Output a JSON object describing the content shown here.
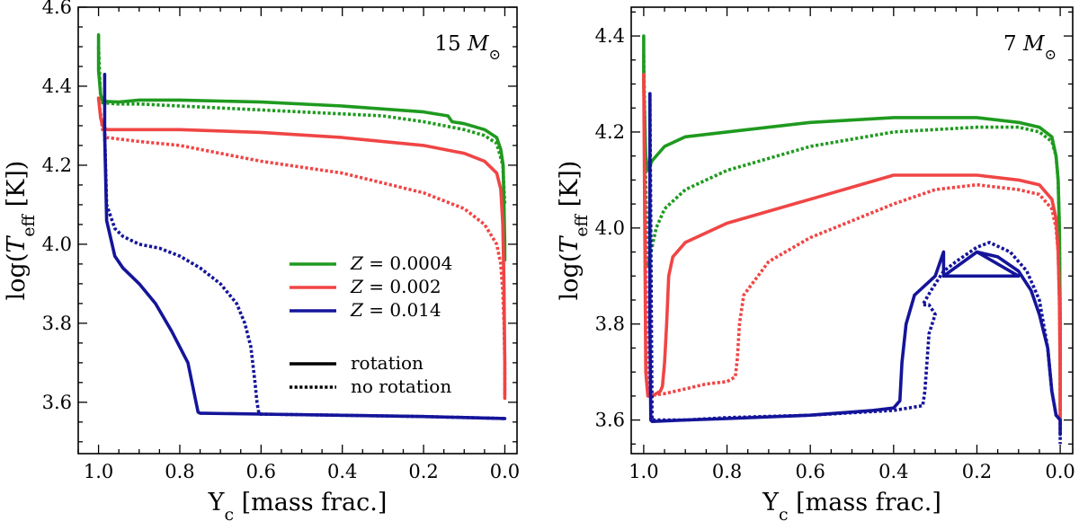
{
  "chart_data": [
    {
      "type": "line",
      "panel": "left",
      "annotation": "15 M⊙",
      "xlabel": "Y_c [mass frac.]",
      "ylabel": "log(T_eff [K])",
      "xlim": [
        1.05,
        -0.03
      ],
      "ylim": [
        3.47,
        4.6
      ],
      "xticks": [
        1.0,
        0.8,
        0.6,
        0.4,
        0.2,
        0.0
      ],
      "xtick_labels": [
        "1.0",
        "0.8",
        "0.6",
        "0.4",
        "0.2",
        "0.0"
      ],
      "yticks": [
        3.6,
        3.8,
        4.0,
        4.2,
        4.4,
        4.6
      ],
      "ytick_labels": [
        "3.6",
        "3.8",
        "4.0",
        "4.2",
        "4.4",
        "4.6"
      ],
      "legend": {
        "placement": "center-right",
        "entries": [
          {
            "label": "Z = 0.0004",
            "color": "#1f9a1f",
            "style": "solid"
          },
          {
            "label": "Z = 0.002",
            "color": "#f04545",
            "style": "solid"
          },
          {
            "label": "Z = 0.014",
            "color": "#14149a",
            "style": "solid"
          },
          {
            "label": "rotation",
            "color": "#000000",
            "style": "solid"
          },
          {
            "label": "no rotation",
            "color": "#000000",
            "style": "dotted"
          }
        ]
      },
      "series": [
        {
          "name": "Z=0.0004 rotation",
          "color": "#1f9a1f",
          "style": "solid",
          "x": [
            1.0,
            1.0,
            0.995,
            0.99,
            0.95,
            0.9,
            0.8,
            0.6,
            0.4,
            0.2,
            0.14,
            0.13,
            0.1,
            0.05,
            0.02,
            0.01,
            0.004,
            0.002,
            0.0,
            0.0
          ],
          "y": [
            4.53,
            4.44,
            4.38,
            4.362,
            4.36,
            4.365,
            4.365,
            4.36,
            4.35,
            4.335,
            4.325,
            4.31,
            4.305,
            4.29,
            4.27,
            4.24,
            4.2,
            4.1,
            4.0,
            3.96
          ]
        },
        {
          "name": "Z=0.0004 no rotation",
          "color": "#1f9a1f",
          "style": "dotted",
          "x": [
            1.0,
            0.995,
            0.99,
            0.95,
            0.9,
            0.8,
            0.6,
            0.4,
            0.3,
            0.2,
            0.1,
            0.05,
            0.02,
            0.005,
            0.0
          ],
          "y": [
            4.5,
            4.37,
            4.358,
            4.355,
            4.355,
            4.35,
            4.34,
            4.33,
            4.325,
            4.31,
            4.29,
            4.275,
            4.255,
            4.2,
            4.1
          ]
        },
        {
          "name": "Z=0.002 rotation",
          "color": "#f04545",
          "style": "solid",
          "x": [
            1.0,
            0.995,
            0.99,
            0.98,
            0.9,
            0.8,
            0.6,
            0.4,
            0.2,
            0.1,
            0.05,
            0.02,
            0.01,
            0.005,
            0.002,
            0.0,
            0.0
          ],
          "y": [
            4.37,
            4.32,
            4.3,
            4.29,
            4.29,
            4.29,
            4.283,
            4.27,
            4.25,
            4.23,
            4.21,
            4.18,
            4.14,
            4.05,
            3.9,
            3.7,
            3.61
          ]
        },
        {
          "name": "Z=0.002 no rotation",
          "color": "#f04545",
          "style": "dotted",
          "x": [
            1.0,
            0.99,
            0.98,
            0.9,
            0.8,
            0.7,
            0.6,
            0.4,
            0.2,
            0.1,
            0.05,
            0.02,
            0.01,
            0.005,
            0.002,
            0.0,
            0.0
          ],
          "y": [
            4.37,
            4.29,
            4.27,
            4.26,
            4.25,
            4.23,
            4.21,
            4.18,
            4.13,
            4.09,
            4.05,
            4.0,
            3.95,
            3.88,
            3.8,
            3.7,
            3.62
          ]
        },
        {
          "name": "Z=0.014 rotation",
          "color": "#14149a",
          "style": "solid",
          "x": [
            0.985,
            0.985,
            0.98,
            0.96,
            0.94,
            0.9,
            0.86,
            0.82,
            0.78,
            0.76,
            0.755,
            0.75,
            0.74,
            0.6,
            0.4,
            0.2,
            0.0
          ],
          "y": [
            4.43,
            4.28,
            4.06,
            3.97,
            3.94,
            3.9,
            3.85,
            3.78,
            3.7,
            3.6,
            3.575,
            3.572,
            3.572,
            3.57,
            3.567,
            3.564,
            3.559
          ]
        },
        {
          "name": "Z=0.014 no rotation",
          "color": "#14149a",
          "style": "dotted",
          "x": [
            0.985,
            0.98,
            0.96,
            0.94,
            0.9,
            0.85,
            0.8,
            0.75,
            0.7,
            0.66,
            0.64,
            0.625,
            0.615,
            0.61,
            0.605,
            0.4,
            0.2,
            0.0
          ],
          "y": [
            4.28,
            4.1,
            4.04,
            4.02,
            4.0,
            3.99,
            3.97,
            3.94,
            3.9,
            3.85,
            3.8,
            3.74,
            3.65,
            3.6,
            3.57,
            3.567,
            3.564,
            3.559
          ]
        }
      ]
    },
    {
      "type": "line",
      "panel": "right",
      "annotation": "7 M⊙",
      "xlabel": "Y_c [mass frac.]",
      "ylabel": "log(T_eff [K])",
      "xlim": [
        1.03,
        -0.03
      ],
      "ylim": [
        3.53,
        4.46
      ],
      "xticks": [
        1.0,
        0.8,
        0.6,
        0.4,
        0.2,
        0.0
      ],
      "xtick_labels": [
        "1.0",
        "0.8",
        "0.6",
        "0.4",
        "0.2",
        "0.0"
      ],
      "yticks": [
        3.6,
        3.8,
        4.0,
        4.2,
        4.4
      ],
      "ytick_labels": [
        "3.6",
        "3.8",
        "4.0",
        "4.2",
        "4.4"
      ],
      "series": [
        {
          "name": "Z=0.0004 rotation",
          "color": "#1f9a1f",
          "style": "solid",
          "x": [
            1.0,
            1.0,
            0.995,
            0.99,
            0.98,
            0.95,
            0.9,
            0.8,
            0.6,
            0.4,
            0.2,
            0.1,
            0.05,
            0.02,
            0.01,
            0.005,
            0.002,
            0.0,
            0.0
          ],
          "y": [
            4.4,
            4.3,
            4.15,
            4.12,
            4.14,
            4.17,
            4.19,
            4.2,
            4.22,
            4.23,
            4.23,
            4.22,
            4.21,
            4.19,
            4.15,
            4.1,
            4.0,
            3.8,
            3.62
          ]
        },
        {
          "name": "Z=0.0004 no rotation",
          "color": "#1f9a1f",
          "style": "dotted",
          "x": [
            1.0,
            0.995,
            0.99,
            0.97,
            0.95,
            0.9,
            0.8,
            0.6,
            0.4,
            0.2,
            0.1,
            0.05,
            0.02,
            0.01,
            0.005,
            0.002,
            0.0,
            0.0
          ],
          "y": [
            4.36,
            4.1,
            3.92,
            4.0,
            4.04,
            4.08,
            4.12,
            4.17,
            4.2,
            4.21,
            4.21,
            4.2,
            4.18,
            4.15,
            4.1,
            4.0,
            3.8,
            3.65
          ]
        },
        {
          "name": "Z=0.002 rotation",
          "color": "#f04545",
          "style": "solid",
          "x": [
            1.0,
            0.995,
            0.99,
            0.98,
            0.97,
            0.96,
            0.955,
            0.95,
            0.945,
            0.94,
            0.93,
            0.9,
            0.8,
            0.6,
            0.4,
            0.2,
            0.1,
            0.05,
            0.02,
            0.01,
            0.005,
            0.002,
            0.0,
            0.0
          ],
          "y": [
            4.32,
            3.7,
            3.65,
            3.65,
            3.655,
            3.66,
            3.67,
            3.72,
            3.8,
            3.9,
            3.94,
            3.97,
            4.01,
            4.06,
            4.11,
            4.11,
            4.1,
            4.09,
            4.06,
            4.02,
            3.95,
            3.85,
            3.7,
            3.58
          ]
        },
        {
          "name": "Z=0.002 no rotation",
          "color": "#f04545",
          "style": "dotted",
          "x": [
            1.0,
            0.99,
            0.95,
            0.9,
            0.85,
            0.8,
            0.78,
            0.775,
            0.77,
            0.76,
            0.7,
            0.6,
            0.4,
            0.3,
            0.2,
            0.1,
            0.05,
            0.02,
            0.01,
            0.005,
            0.002,
            0.0,
            0.0
          ],
          "y": [
            4.32,
            3.65,
            3.655,
            3.665,
            3.675,
            3.68,
            3.69,
            3.73,
            3.8,
            3.86,
            3.93,
            3.98,
            4.05,
            4.08,
            4.09,
            4.08,
            4.07,
            4.04,
            4.0,
            3.95,
            3.85,
            3.7,
            3.6
          ]
        },
        {
          "name": "Z=0.014 rotation",
          "color": "#14149a",
          "style": "solid",
          "x": [
            0.985,
            0.985,
            0.983,
            0.98,
            0.9,
            0.8,
            0.6,
            0.45,
            0.4,
            0.385,
            0.38,
            0.37,
            0.35,
            0.3,
            0.28,
            0.28,
            0.1,
            0.2,
            0.28,
            0.2,
            0.15,
            0.1,
            0.07,
            0.05,
            0.03,
            0.02,
            0.01,
            0.0,
            0.0
          ],
          "y": [
            4.28,
            3.8,
            3.6,
            3.597,
            3.6,
            3.603,
            3.61,
            3.62,
            3.625,
            3.64,
            3.72,
            3.8,
            3.86,
            3.9,
            3.95,
            3.9,
            3.9,
            3.95,
            3.9,
            3.95,
            3.94,
            3.91,
            3.87,
            3.82,
            3.75,
            3.66,
            3.61,
            3.6,
            3.57
          ]
        },
        {
          "name": "Z=0.014 no rotation",
          "color": "#14149a",
          "style": "dotted",
          "x": [
            0.985,
            0.98,
            0.9,
            0.8,
            0.6,
            0.4,
            0.33,
            0.325,
            0.32,
            0.315,
            0.3,
            0.315,
            0.33,
            0.31,
            0.28,
            0.25,
            0.2,
            0.17,
            0.12,
            0.08,
            0.05,
            0.03,
            0.02,
            0.01,
            0.0,
            0.0
          ],
          "y": [
            4.28,
            3.6,
            3.6,
            3.605,
            3.61,
            3.62,
            3.63,
            3.66,
            3.72,
            3.78,
            3.82,
            3.84,
            3.84,
            3.87,
            3.91,
            3.93,
            3.96,
            3.97,
            3.95,
            3.91,
            3.85,
            3.75,
            3.66,
            3.61,
            3.6,
            3.55
          ]
        }
      ]
    }
  ]
}
